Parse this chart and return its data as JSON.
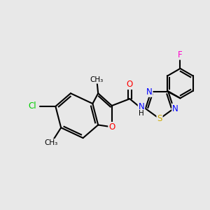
{
  "bg_color": "#e8e8e8",
  "bond_color": "#000000",
  "bond_width": 1.5,
  "atom_colors": {
    "O": "#ff0000",
    "N": "#0000ff",
    "S": "#ccaa00",
    "Cl": "#00cc00",
    "F": "#ff00cc",
    "H": "#000000",
    "C": "#000000"
  }
}
